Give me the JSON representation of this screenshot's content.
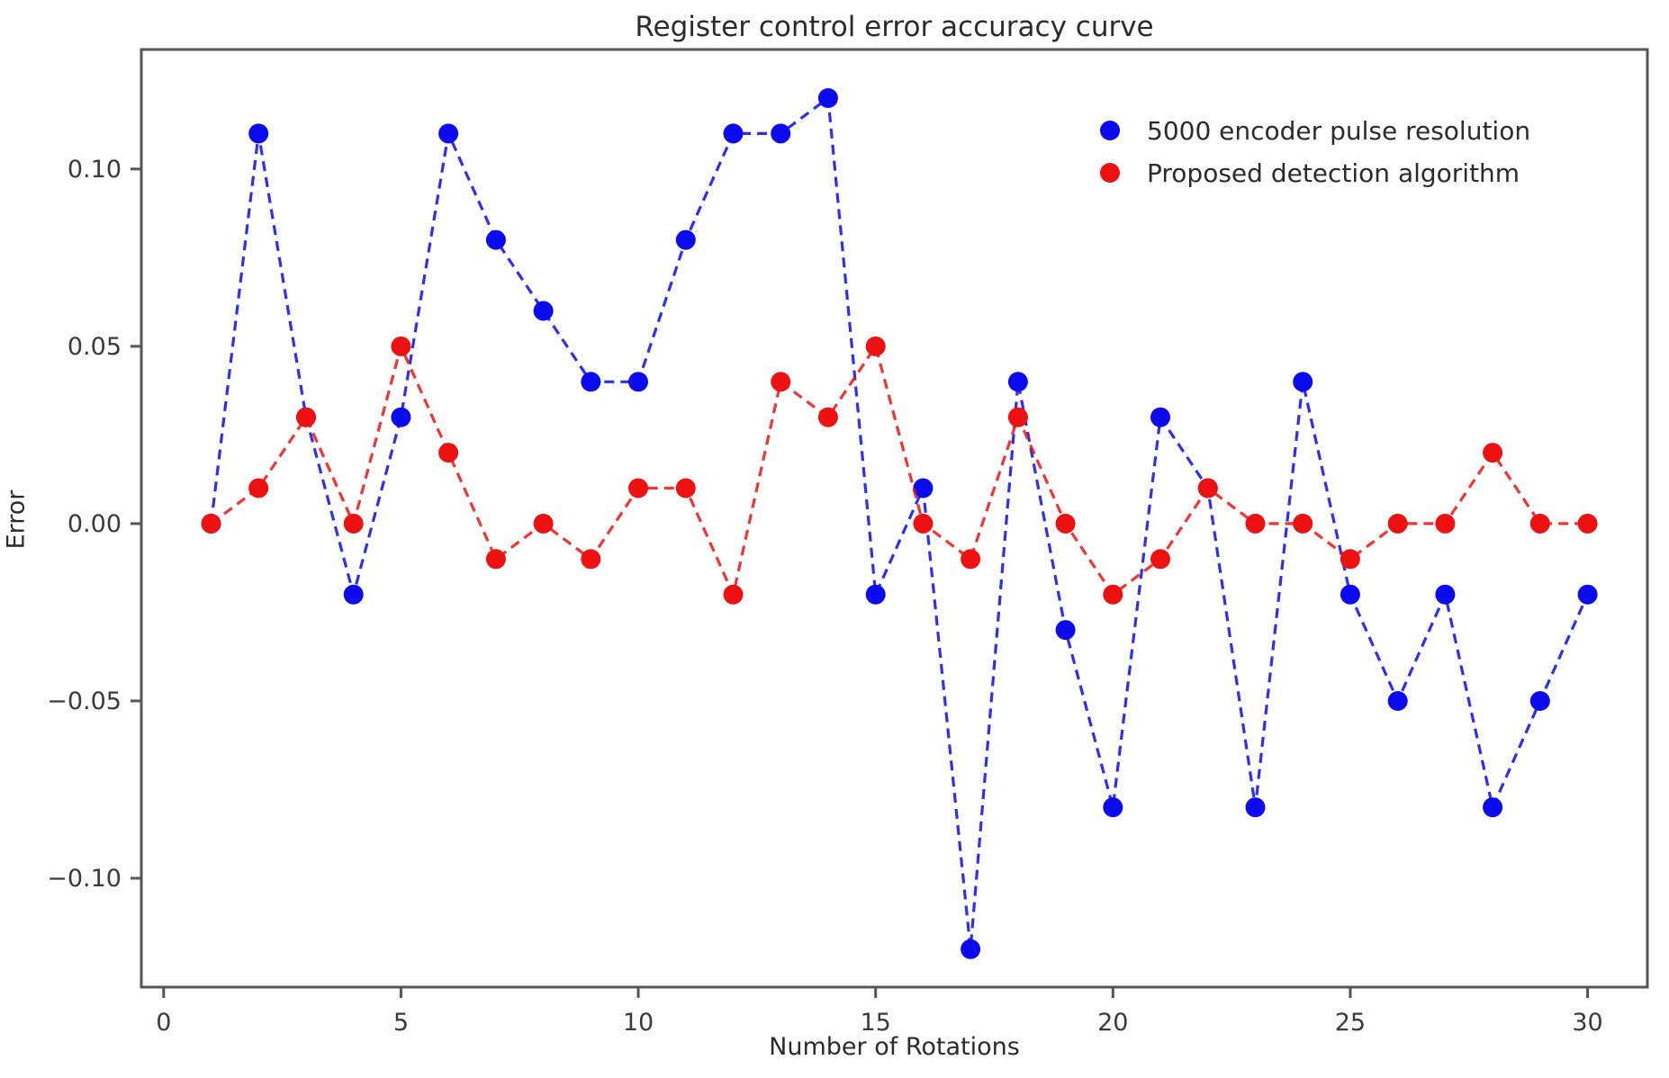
{
  "title": "Register control error accuracy curve",
  "chart_data": {
    "type": "line",
    "title": "Register control error accuracy curve",
    "xlabel": "Number of Rotations",
    "ylabel": "Error",
    "x": [
      1,
      2,
      3,
      4,
      5,
      6,
      7,
      8,
      9,
      10,
      11,
      12,
      13,
      14,
      15,
      16,
      17,
      18,
      19,
      20,
      21,
      22,
      23,
      24,
      25,
      26,
      27,
      28,
      29,
      30
    ],
    "series": [
      {
        "name": "5000 encoder pulse resolution",
        "color": "#0b0bee",
        "marker": "circle",
        "linestyle": "dashed",
        "values": [
          0.0,
          0.11,
          0.03,
          -0.02,
          0.03,
          0.11,
          0.08,
          0.06,
          0.04,
          0.04,
          0.08,
          0.11,
          0.11,
          0.12,
          -0.02,
          0.01,
          -0.12,
          0.04,
          -0.03,
          -0.08,
          0.03,
          0.01,
          -0.08,
          0.04,
          -0.02,
          -0.05,
          -0.02,
          -0.08,
          -0.05,
          -0.02
        ]
      },
      {
        "name": "Proposed detection algorithm",
        "color": "#ee1111",
        "marker": "circle",
        "linestyle": "dashed",
        "values": [
          0.0,
          0.01,
          0.03,
          0.0,
          0.05,
          0.02,
          -0.01,
          0.0,
          -0.01,
          0.01,
          0.01,
          -0.02,
          0.04,
          0.03,
          0.05,
          0.0,
          -0.01,
          0.03,
          0.0,
          -0.02,
          -0.01,
          0.01,
          0.0,
          0.0,
          -0.01,
          0.0,
          0.0,
          0.02,
          0.0,
          0.0
        ]
      }
    ],
    "xtick_values": [
      0,
      5,
      10,
      15,
      20,
      25,
      30
    ],
    "xtick_labels": [
      "0",
      "5",
      "10",
      "15",
      "20",
      "25",
      "30"
    ],
    "ytick_values": [
      0.1,
      0.05,
      0.0,
      -0.05,
      -0.1
    ],
    "ytick_labels": [
      "0.10",
      "0.05",
      "0.00",
      "−0.05",
      "−0.10"
    ],
    "xlim": [
      -0.47,
      31.26
    ],
    "ylim": [
      -0.1307,
      0.1337
    ],
    "grid": false,
    "legend_position": "upper right",
    "axis_color": "#555555",
    "tick_label_color": "#3a3a3a"
  }
}
